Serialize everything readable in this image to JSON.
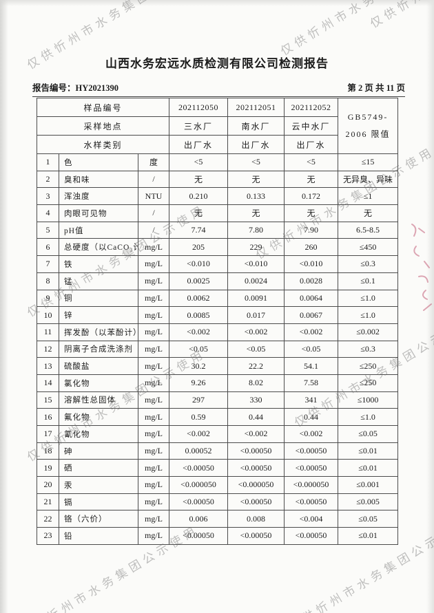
{
  "watermark": {
    "text": "仅供忻州市水务集团公示使用"
  },
  "header": {
    "title": "山西水务宏远水质检测有限公司检测报告",
    "report_no": "报告编号：HY2021390",
    "page_info": "第 2 页 共 11 页"
  },
  "table": {
    "labels": {
      "sample_no": "样品编号",
      "location": "采样地点",
      "sample_type": "水样类别",
      "limit_header": "GB5749-\n2006 限值"
    },
    "samples": [
      {
        "id": "202112050",
        "location": "三水厂",
        "type": "出厂水"
      },
      {
        "id": "202112051",
        "location": "南水厂",
        "type": "出厂水"
      },
      {
        "id": "202112052",
        "location": "云中水厂",
        "type": "出厂水"
      }
    ],
    "rows": [
      [
        "1",
        "色",
        "度",
        "<5",
        "<5",
        "<5",
        "≤15"
      ],
      [
        "2",
        "臭和味",
        "/",
        "无",
        "无",
        "无",
        "无异臭、异味"
      ],
      [
        "3",
        "浑浊度",
        "NTU",
        "0.210",
        "0.133",
        "0.172",
        "≤1"
      ],
      [
        "4",
        "肉眼可见物",
        "/",
        "无",
        "无",
        "无",
        "无"
      ],
      [
        "5",
        "pH值",
        "/",
        "7.74",
        "7.80",
        "7.90",
        "6.5-8.5"
      ],
      [
        "6",
        "总硬度（以CaCO₃计）",
        "mg/L",
        "205",
        "229",
        "260",
        "≤450"
      ],
      [
        "7",
        "铁",
        "mg/L",
        "<0.010",
        "<0.010",
        "<0.010",
        "≤0.3"
      ],
      [
        "8",
        "锰",
        "mg/L",
        "0.0025",
        "0.0024",
        "0.0028",
        "≤0.1"
      ],
      [
        "9",
        "铜",
        "mg/L",
        "0.0062",
        "0.0091",
        "0.0064",
        "≤1.0"
      ],
      [
        "10",
        "锌",
        "mg/L",
        "0.0085",
        "0.017",
        "0.0067",
        "≤1.0"
      ],
      [
        "11",
        "挥发酚（以苯酚计）",
        "mg/L",
        "<0.002",
        "<0.002",
        "<0.002",
        "≤0.002"
      ],
      [
        "12",
        "阴离子合成洗涤剂",
        "mg/L",
        "<0.05",
        "<0.05",
        "<0.05",
        "≤0.3"
      ],
      [
        "13",
        "硫酸盐",
        "mg/L",
        "30.2",
        "22.2",
        "54.1",
        "≤250"
      ],
      [
        "14",
        "氯化物",
        "mg/L",
        "9.26",
        "8.02",
        "7.58",
        "≤250"
      ],
      [
        "15",
        "溶解性总固体",
        "mg/L",
        "297",
        "330",
        "341",
        "≤1000"
      ],
      [
        "16",
        "氟化物",
        "mg/L",
        "0.59",
        "0.44",
        "0.44",
        "≤1.0"
      ],
      [
        "17",
        "氰化物",
        "mg/L",
        "<0.002",
        "<0.002",
        "<0.002",
        "≤0.05"
      ],
      [
        "18",
        "砷",
        "mg/L",
        "0.00052",
        "<0.00050",
        "<0.00050",
        "≤0.01"
      ],
      [
        "19",
        "硒",
        "mg/L",
        "<0.00050",
        "<0.00050",
        "<0.00050",
        "≤0.01"
      ],
      [
        "20",
        "汞",
        "mg/L",
        "<0.000050",
        "<0.000050",
        "<0.000050",
        "≤0.001"
      ],
      [
        "21",
        "镉",
        "mg/L",
        "<0.00050",
        "<0.00050",
        "<0.00050",
        "≤0.005"
      ],
      [
        "22",
        "铬（六价）",
        "mg/L",
        "0.006",
        "0.008",
        "<0.004",
        "≤0.05"
      ],
      [
        "23",
        "铅",
        "mg/L",
        "<0.00050",
        "<0.00050",
        "<0.00050",
        "≤0.01"
      ]
    ]
  }
}
